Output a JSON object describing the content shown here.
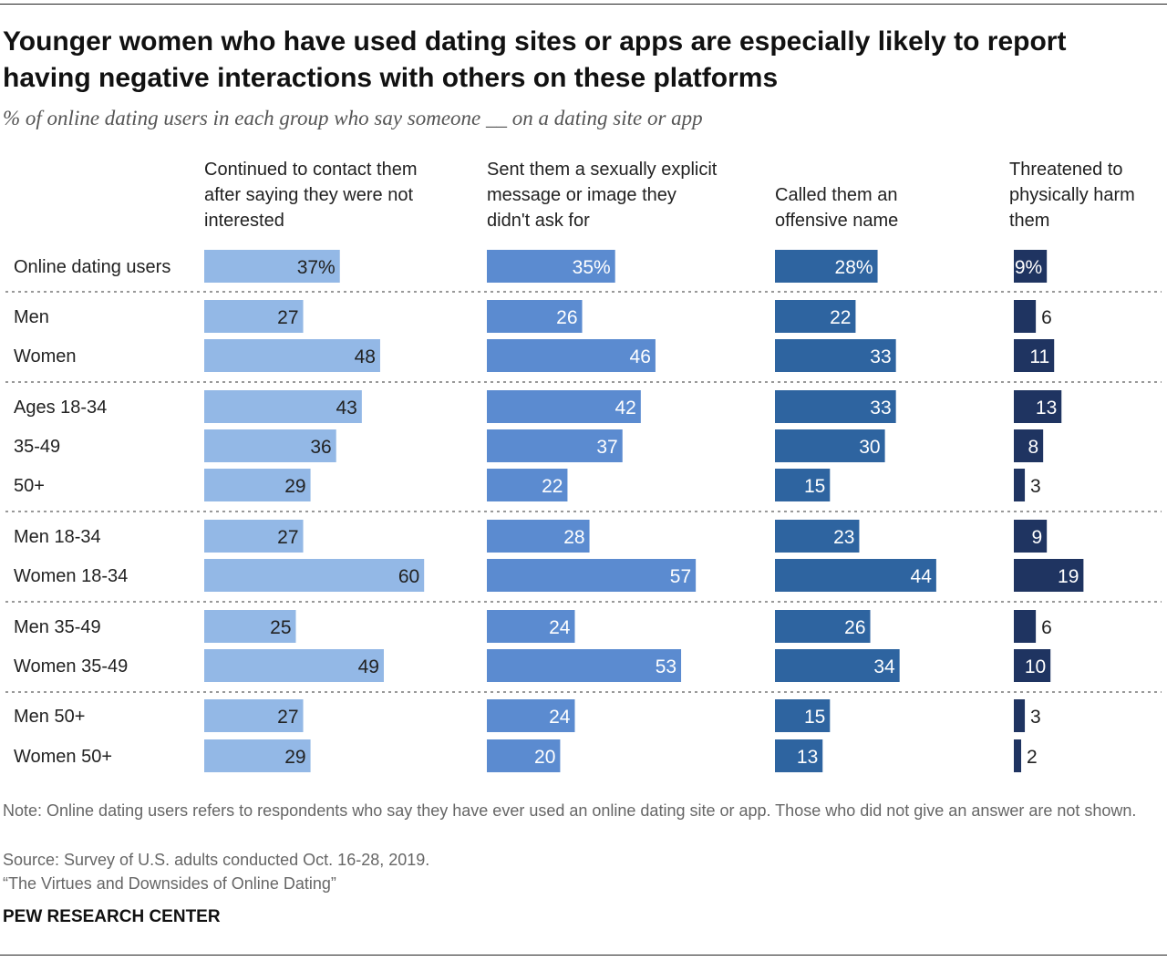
{
  "title": "Younger women who have used dating sites or apps are especially likely to report having negative interactions with others on these platforms",
  "subtitle": "% of online dating users in each group who say someone __ on a dating site or app",
  "chart_data": {
    "type": "bar",
    "orientation": "horizontal",
    "categories": [
      "Online dating users",
      "Men",
      "Women",
      "Ages 18-34",
      "35-49",
      "50+",
      "Men 18-34",
      "Women 18-34",
      "Men 35-49",
      "Women 35-49",
      "Men 50+",
      "Women 50+"
    ],
    "groups": [
      [
        0
      ],
      [
        1,
        2
      ],
      [
        3,
        4,
        5
      ],
      [
        6,
        7
      ],
      [
        8,
        9
      ],
      [
        10,
        11
      ]
    ],
    "series": [
      {
        "name": "Continued to contact them after saying they were not interested",
        "color": "#93b8e6",
        "values": [
          37,
          27,
          48,
          43,
          36,
          29,
          27,
          60,
          25,
          49,
          27,
          29
        ]
      },
      {
        "name": "Sent them a sexually explicit message or image they didn't ask for",
        "color": "#5b8bd0",
        "values": [
          35,
          26,
          46,
          42,
          37,
          22,
          28,
          57,
          24,
          53,
          24,
          20
        ]
      },
      {
        "name": "Called them an offensive name",
        "color": "#2e64a0",
        "values": [
          28,
          22,
          33,
          33,
          30,
          15,
          23,
          44,
          26,
          34,
          15,
          13
        ]
      },
      {
        "name": "Threatened to physically harm them",
        "color": "#1f3461",
        "values": [
          9,
          6,
          11,
          13,
          8,
          3,
          9,
          19,
          6,
          10,
          3,
          2
        ]
      }
    ],
    "first_row_suffix": "%",
    "xlim": [
      0,
      100
    ]
  },
  "notes": {
    "note": "Note: Online dating users refers to respondents who say they have ever used an online dating site or app. Those who did not give an answer are not shown.",
    "source": "Source: Survey of U.S. adults conducted Oct. 16-28, 2019.",
    "report": "“The Virtues and Downsides of Online Dating”",
    "brand": "PEW RESEARCH CENTER"
  }
}
